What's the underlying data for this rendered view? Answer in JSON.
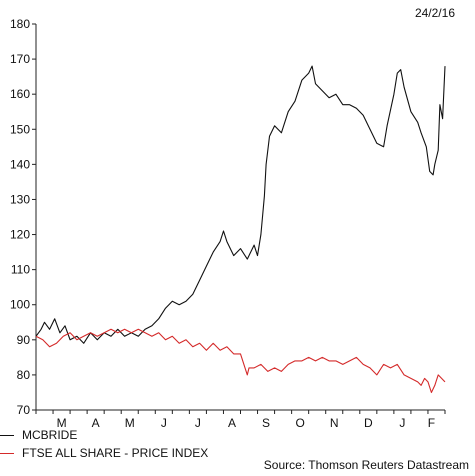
{
  "date_label": "24/2/16",
  "source": "Source: Thomson Reuters Datastream",
  "colors": {
    "mcbride": "#111111",
    "ftse": "#d42a2a",
    "axis": "#222222"
  },
  "chart_data": {
    "type": "line",
    "ylim": [
      70,
      180
    ],
    "yticks": [
      70,
      80,
      90,
      100,
      110,
      120,
      130,
      140,
      150,
      160,
      170,
      180
    ],
    "xlim": [
      0,
      12
    ],
    "months": [
      {
        "label": "M",
        "x": 1
      },
      {
        "label": "A",
        "x": 2
      },
      {
        "label": "M",
        "x": 3
      },
      {
        "label": "J",
        "x": 4
      },
      {
        "label": "J",
        "x": 5
      },
      {
        "label": "A",
        "x": 6
      },
      {
        "label": "S",
        "x": 7
      },
      {
        "label": "O",
        "x": 8
      },
      {
        "label": "N",
        "x": 9
      },
      {
        "label": "D",
        "x": 10
      },
      {
        "label": "J",
        "x": 11
      },
      {
        "label": "F",
        "x": 11.85
      }
    ],
    "series": [
      {
        "name": "MCBRIDE",
        "color": "#111111",
        "points": [
          [
            0,
            91
          ],
          [
            0.15,
            93
          ],
          [
            0.25,
            95
          ],
          [
            0.4,
            93
          ],
          [
            0.55,
            96
          ],
          [
            0.7,
            92
          ],
          [
            0.85,
            94
          ],
          [
            1.0,
            90
          ],
          [
            1.2,
            91
          ],
          [
            1.4,
            89
          ],
          [
            1.6,
            92
          ],
          [
            1.8,
            90
          ],
          [
            2.0,
            92
          ],
          [
            2.2,
            91
          ],
          [
            2.4,
            93
          ],
          [
            2.6,
            91
          ],
          [
            2.8,
            92
          ],
          [
            3.0,
            91
          ],
          [
            3.2,
            93
          ],
          [
            3.4,
            94
          ],
          [
            3.6,
            96
          ],
          [
            3.8,
            99
          ],
          [
            4.0,
            101
          ],
          [
            4.2,
            100
          ],
          [
            4.4,
            101
          ],
          [
            4.6,
            103
          ],
          [
            4.8,
            107
          ],
          [
            5.0,
            111
          ],
          [
            5.2,
            115
          ],
          [
            5.4,
            118
          ],
          [
            5.5,
            121
          ],
          [
            5.6,
            118
          ],
          [
            5.8,
            114
          ],
          [
            6.0,
            116
          ],
          [
            6.2,
            113
          ],
          [
            6.4,
            117
          ],
          [
            6.5,
            114
          ],
          [
            6.6,
            120
          ],
          [
            6.7,
            131
          ],
          [
            6.75,
            140
          ],
          [
            6.85,
            148
          ],
          [
            7.0,
            151
          ],
          [
            7.2,
            149
          ],
          [
            7.4,
            155
          ],
          [
            7.6,
            158
          ],
          [
            7.8,
            164
          ],
          [
            8.0,
            166
          ],
          [
            8.1,
            168
          ],
          [
            8.2,
            163
          ],
          [
            8.4,
            161
          ],
          [
            8.6,
            159
          ],
          [
            8.8,
            160
          ],
          [
            9.0,
            157
          ],
          [
            9.2,
            157
          ],
          [
            9.4,
            156
          ],
          [
            9.6,
            154
          ],
          [
            9.8,
            150
          ],
          [
            10.0,
            146
          ],
          [
            10.2,
            145
          ],
          [
            10.3,
            151
          ],
          [
            10.5,
            160
          ],
          [
            10.6,
            166
          ],
          [
            10.7,
            167
          ],
          [
            10.8,
            162
          ],
          [
            11.0,
            155
          ],
          [
            11.2,
            152
          ],
          [
            11.3,
            149
          ],
          [
            11.45,
            145
          ],
          [
            11.55,
            138
          ],
          [
            11.65,
            137
          ],
          [
            11.7,
            140
          ],
          [
            11.8,
            144
          ],
          [
            11.85,
            157
          ],
          [
            11.93,
            153
          ],
          [
            12.0,
            168
          ]
        ]
      },
      {
        "name": "FTSE ALL SHARE - PRICE INDEX",
        "color": "#d42a2a",
        "points": [
          [
            0,
            91
          ],
          [
            0.2,
            90
          ],
          [
            0.4,
            88
          ],
          [
            0.6,
            89
          ],
          [
            0.8,
            91
          ],
          [
            1.0,
            92
          ],
          [
            1.2,
            90
          ],
          [
            1.4,
            91
          ],
          [
            1.6,
            92
          ],
          [
            1.8,
            91
          ],
          [
            2.0,
            92
          ],
          [
            2.2,
            93
          ],
          [
            2.4,
            92
          ],
          [
            2.6,
            93
          ],
          [
            2.8,
            92
          ],
          [
            3.0,
            93
          ],
          [
            3.2,
            92
          ],
          [
            3.4,
            91
          ],
          [
            3.6,
            92
          ],
          [
            3.8,
            90
          ],
          [
            4.0,
            91
          ],
          [
            4.2,
            89
          ],
          [
            4.4,
            90
          ],
          [
            4.6,
            88
          ],
          [
            4.8,
            89
          ],
          [
            5.0,
            87
          ],
          [
            5.2,
            89
          ],
          [
            5.4,
            87
          ],
          [
            5.6,
            88
          ],
          [
            5.8,
            86
          ],
          [
            6.0,
            86
          ],
          [
            6.2,
            80
          ],
          [
            6.25,
            82
          ],
          [
            6.4,
            82
          ],
          [
            6.6,
            83
          ],
          [
            6.8,
            81
          ],
          [
            7.0,
            82
          ],
          [
            7.2,
            81
          ],
          [
            7.4,
            83
          ],
          [
            7.6,
            84
          ],
          [
            7.8,
            84
          ],
          [
            8.0,
            85
          ],
          [
            8.2,
            84
          ],
          [
            8.4,
            85
          ],
          [
            8.6,
            84
          ],
          [
            8.8,
            84
          ],
          [
            9.0,
            83
          ],
          [
            9.2,
            84
          ],
          [
            9.4,
            85
          ],
          [
            9.6,
            83
          ],
          [
            9.8,
            82
          ],
          [
            10.0,
            80
          ],
          [
            10.2,
            83
          ],
          [
            10.4,
            82
          ],
          [
            10.6,
            83
          ],
          [
            10.8,
            80
          ],
          [
            11.0,
            79
          ],
          [
            11.2,
            78
          ],
          [
            11.3,
            77
          ],
          [
            11.4,
            79
          ],
          [
            11.5,
            78
          ],
          [
            11.6,
            75
          ],
          [
            11.7,
            77
          ],
          [
            11.8,
            80
          ],
          [
            11.9,
            79
          ],
          [
            12.0,
            78
          ]
        ]
      }
    ]
  }
}
